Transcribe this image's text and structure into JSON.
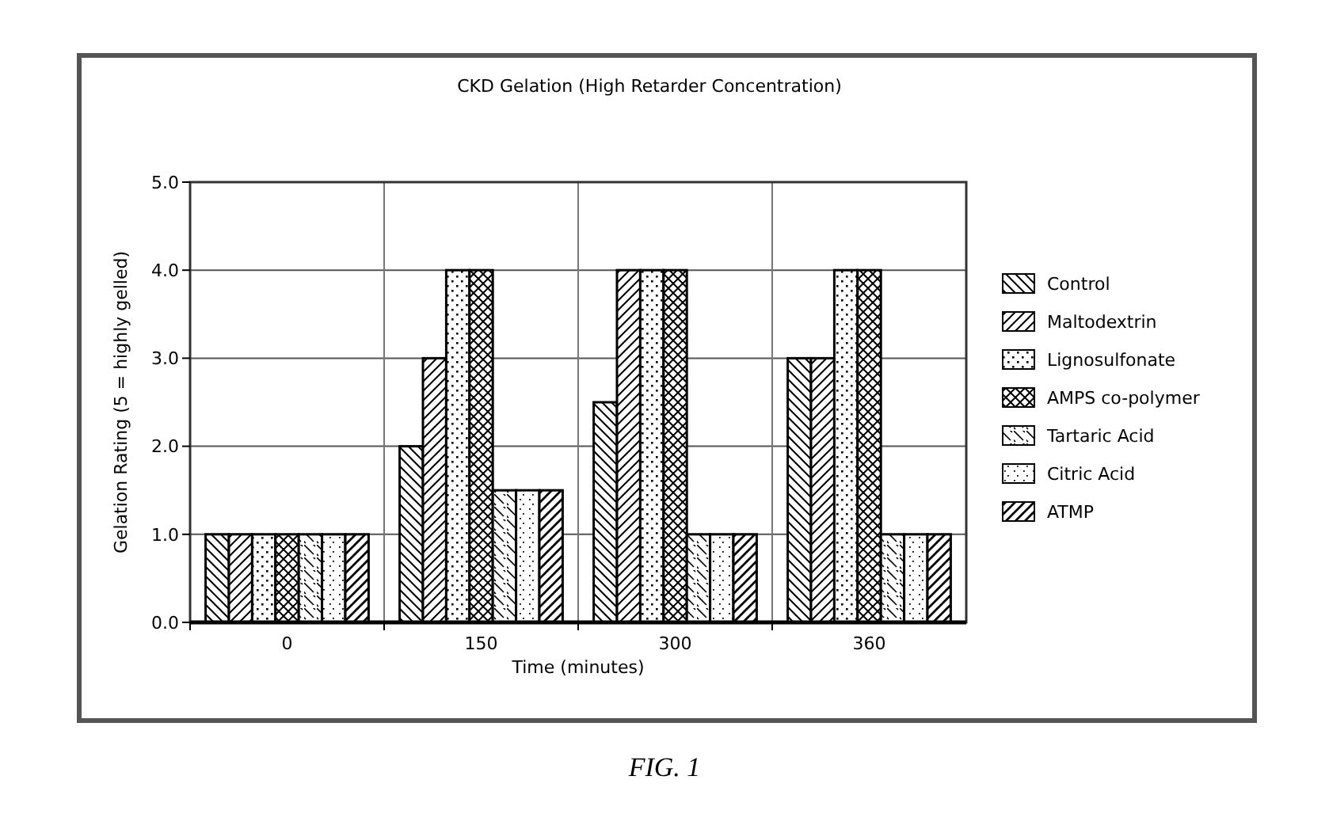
{
  "chart_data": {
    "type": "bar",
    "title": "CKD Gelation (High Retarder Concentration)",
    "xlabel": "Time (minutes)",
    "ylabel": "Gelation Rating (5 = highly gelled)",
    "categories": [
      "0",
      "150",
      "300",
      "360"
    ],
    "series": [
      {
        "name": "Control",
        "color": "#000000",
        "values": [
          1.0,
          2.0,
          2.5,
          3.0
        ]
      },
      {
        "name": "Maltodextrin",
        "color": "#000000",
        "values": [
          1.0,
          3.0,
          4.0,
          3.0
        ]
      },
      {
        "name": "Lignosulfonate",
        "color": "#000000",
        "values": [
          1.0,
          4.0,
          4.0,
          4.0
        ]
      },
      {
        "name": "AMPS co-polymer",
        "color": "#000000",
        "values": [
          1.0,
          4.0,
          4.0,
          4.0
        ]
      },
      {
        "name": "Tartaric Acid",
        "color": "#000000",
        "values": [
          1.0,
          1.5,
          1.0,
          1.0
        ]
      },
      {
        "name": "Citric Acid",
        "color": "#000000",
        "values": [
          1.0,
          1.5,
          1.0,
          1.0
        ]
      },
      {
        "name": "ATMP",
        "color": "#000000",
        "values": [
          1.0,
          1.5,
          1.0,
          1.0
        ]
      }
    ],
    "ylim": [
      0,
      5
    ],
    "yticks": [
      {
        "value": 0,
        "label": "0.0"
      },
      {
        "value": 1,
        "label": "1.0"
      },
      {
        "value": 2,
        "label": "2.0"
      },
      {
        "value": 3,
        "label": "3.0"
      },
      {
        "value": 4,
        "label": "4.0"
      },
      {
        "value": 5,
        "label": "5.0"
      }
    ],
    "grid": true,
    "legend": "right",
    "annotations": [
      "FIG. 1"
    ]
  }
}
